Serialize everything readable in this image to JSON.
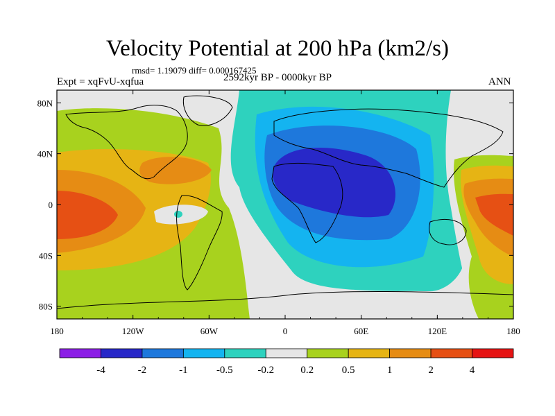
{
  "chart_data": {
    "type": "heatmap",
    "title": "Velocity Potential at 200 hPa (km2/s)",
    "subtitle_left": "Expt = xqFvU-xqfua",
    "subtitle_stats": "rmsd= 1.19079 diff= 0.000167425",
    "subtitle_center": "2592kyr BP - 0000kyr BP",
    "subtitle_right": "ANN",
    "x_tick_labels": [
      "180",
      "120W",
      "60W",
      "0",
      "60E",
      "120E",
      "180"
    ],
    "y_tick_labels": [
      "80N",
      "40N",
      "0",
      "40S",
      "80S"
    ],
    "xlim": [
      -180,
      180
    ],
    "ylim": [
      -90,
      90
    ],
    "colorbar": {
      "colors": [
        "#8c1ee6",
        "#2828c8",
        "#1e78dc",
        "#14b4f0",
        "#2ed2be",
        "#e6e6e6",
        "#a8d21e",
        "#e6b414",
        "#e68c14",
        "#e65014",
        "#e61414"
      ],
      "boundaries": [
        -4,
        -2,
        -1,
        -0.5,
        -0.2,
        0.2,
        0.5,
        1,
        2,
        4
      ],
      "labels": [
        "-4",
        "-2",
        "-1",
        "-0.5",
        "-0.2",
        "0.2",
        "0.5",
        "1",
        "2",
        "4"
      ]
    },
    "field_features": [
      {
        "name": "minimum over Africa / Middle East",
        "lon": 30,
        "lat": 15,
        "value": -2.5
      },
      {
        "name": "maximum over central Pacific",
        "lon": -165,
        "lat": 0,
        "value": 2.5
      },
      {
        "name": "maximum over western Pacific",
        "lon": 160,
        "lat": 0,
        "value": 2.5
      },
      {
        "name": "secondary maximum over Caribbean",
        "lon": -80,
        "lat": 25,
        "value": 1.2
      }
    ]
  }
}
